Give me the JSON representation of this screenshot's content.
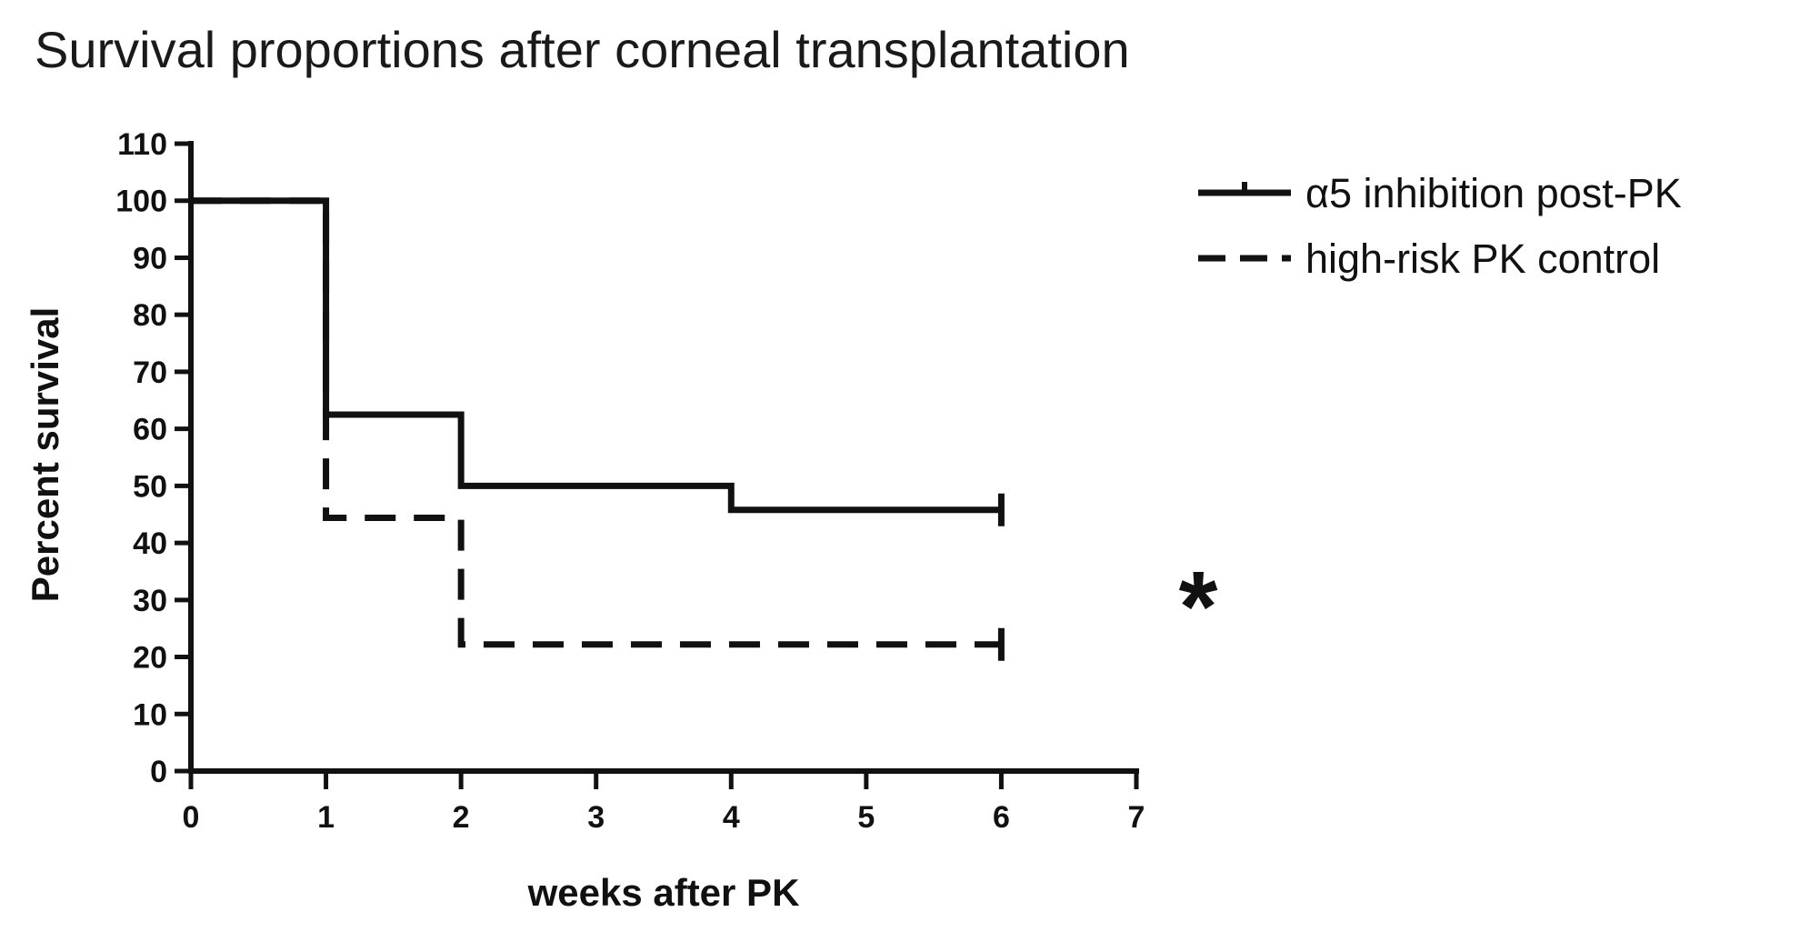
{
  "chart_data": {
    "type": "line",
    "title": "Survival proportions after corneal transplantation",
    "xlabel": "weeks after PK",
    "ylabel": "Percent survival",
    "xlim": [
      0,
      7
    ],
    "ylim": [
      0,
      110
    ],
    "xticks": [
      "0",
      "1",
      "2",
      "3",
      "4",
      "5",
      "6",
      "7"
    ],
    "yticks": [
      "0",
      "10",
      "20",
      "30",
      "40",
      "50",
      "60",
      "70",
      "80",
      "90",
      "100",
      "110"
    ],
    "grid": false,
    "legend_position": "top-right",
    "series": [
      {
        "name": "α5 inhibition post-PK",
        "style": "solid",
        "color": "#111111",
        "x": [
          0,
          1,
          2,
          4,
          6
        ],
        "y": [
          100,
          62.5,
          50,
          45.8,
          45.8
        ]
      },
      {
        "name": "high-risk PK control",
        "style": "dashed",
        "color": "#111111",
        "x": [
          0,
          1,
          2,
          6
        ],
        "y": [
          100,
          44.4,
          22.2,
          22.2
        ]
      }
    ],
    "annotations": [
      {
        "text": "*",
        "position": "right of curves, near 30%"
      }
    ]
  }
}
